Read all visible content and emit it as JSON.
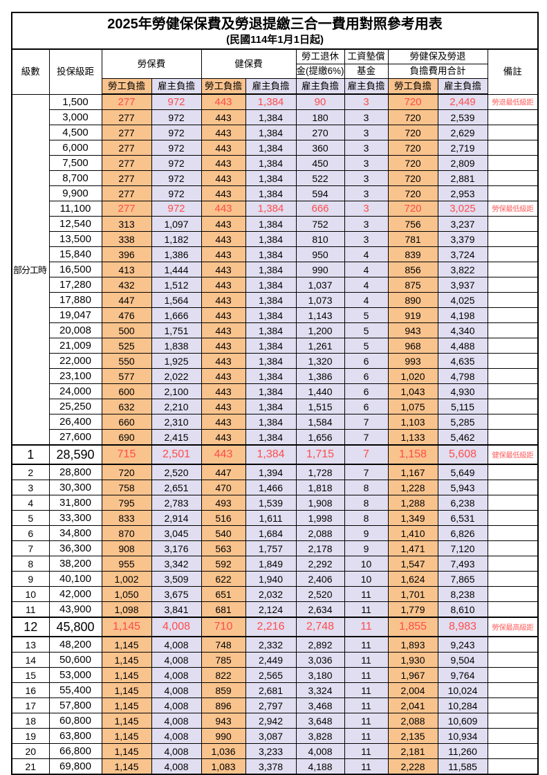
{
  "title": "2025年勞健保保費及勞退提繳三合一費用對照參考用表",
  "subtitle": "(民國114年1月1日起)",
  "columns": {
    "level": "級數",
    "salary": "投保級距",
    "labor_group": "勞保費",
    "health_group": "健保費",
    "pension_line1": "勞工退休",
    "pension_line2": "金(提繳6%)",
    "wage_fund_line1": "工資墊償",
    "wage_fund_line2": "基金",
    "total_line1": "勞健保及勞退",
    "total_line2": "負擔費用合計",
    "employee_share": "勞工負擔",
    "employer_share": "雇主負擔",
    "note": "備註"
  },
  "part_time_label": "部分工時",
  "part_time_rowspan": 23,
  "colors": {
    "employee_bg": "#F9C38D",
    "employer_bg": "#E0DEF0",
    "highlight_red": "#FF4B4B",
    "note_red": "#FF6363"
  },
  "rows": [
    {
      "level": null,
      "salary": "1,500",
      "values": [
        "277",
        "972",
        "443",
        "1,384",
        "90",
        "3",
        "720",
        "2,449"
      ],
      "note": "勞退最低級距",
      "hl": true,
      "big": false
    },
    {
      "level": null,
      "salary": "3,000",
      "values": [
        "277",
        "972",
        "443",
        "1,384",
        "180",
        "3",
        "720",
        "2,539"
      ],
      "note": "",
      "hl": false,
      "big": false
    },
    {
      "level": null,
      "salary": "4,500",
      "values": [
        "277",
        "972",
        "443",
        "1,384",
        "270",
        "3",
        "720",
        "2,629"
      ],
      "note": "",
      "hl": false,
      "big": false
    },
    {
      "level": null,
      "salary": "6,000",
      "values": [
        "277",
        "972",
        "443",
        "1,384",
        "360",
        "3",
        "720",
        "2,719"
      ],
      "note": "",
      "hl": false,
      "big": false
    },
    {
      "level": null,
      "salary": "7,500",
      "values": [
        "277",
        "972",
        "443",
        "1,384",
        "450",
        "3",
        "720",
        "2,809"
      ],
      "note": "",
      "hl": false,
      "big": false
    },
    {
      "level": null,
      "salary": "8,700",
      "values": [
        "277",
        "972",
        "443",
        "1,384",
        "522",
        "3",
        "720",
        "2,881"
      ],
      "note": "",
      "hl": false,
      "big": false
    },
    {
      "level": null,
      "salary": "9,900",
      "values": [
        "277",
        "972",
        "443",
        "1,384",
        "594",
        "3",
        "720",
        "2,953"
      ],
      "note": "",
      "hl": false,
      "big": false
    },
    {
      "level": null,
      "salary": "11,100",
      "values": [
        "277",
        "972",
        "443",
        "1,384",
        "666",
        "3",
        "720",
        "3,025"
      ],
      "note": "勞保最低級距",
      "hl": true,
      "big": false
    },
    {
      "level": null,
      "salary": "12,540",
      "values": [
        "313",
        "1,097",
        "443",
        "1,384",
        "752",
        "3",
        "756",
        "3,237"
      ],
      "note": "",
      "hl": false,
      "big": false
    },
    {
      "level": null,
      "salary": "13,500",
      "values": [
        "338",
        "1,182",
        "443",
        "1,384",
        "810",
        "3",
        "781",
        "3,379"
      ],
      "note": "",
      "hl": false,
      "big": false
    },
    {
      "level": null,
      "salary": "15,840",
      "values": [
        "396",
        "1,386",
        "443",
        "1,384",
        "950",
        "4",
        "839",
        "3,724"
      ],
      "note": "",
      "hl": false,
      "big": false
    },
    {
      "level": null,
      "salary": "16,500",
      "values": [
        "413",
        "1,444",
        "443",
        "1,384",
        "990",
        "4",
        "856",
        "3,822"
      ],
      "note": "",
      "hl": false,
      "big": false
    },
    {
      "level": null,
      "salary": "17,280",
      "values": [
        "432",
        "1,512",
        "443",
        "1,384",
        "1,037",
        "4",
        "875",
        "3,937"
      ],
      "note": "",
      "hl": false,
      "big": false
    },
    {
      "level": null,
      "salary": "17,880",
      "values": [
        "447",
        "1,564",
        "443",
        "1,384",
        "1,073",
        "4",
        "890",
        "4,025"
      ],
      "note": "",
      "hl": false,
      "big": false
    },
    {
      "level": null,
      "salary": "19,047",
      "values": [
        "476",
        "1,666",
        "443",
        "1,384",
        "1,143",
        "5",
        "919",
        "4,198"
      ],
      "note": "",
      "hl": false,
      "big": false
    },
    {
      "level": null,
      "salary": "20,008",
      "values": [
        "500",
        "1,751",
        "443",
        "1,384",
        "1,200",
        "5",
        "943",
        "4,340"
      ],
      "note": "",
      "hl": false,
      "big": false
    },
    {
      "level": null,
      "salary": "21,009",
      "values": [
        "525",
        "1,838",
        "443",
        "1,384",
        "1,261",
        "5",
        "968",
        "4,488"
      ],
      "note": "",
      "hl": false,
      "big": false
    },
    {
      "level": null,
      "salary": "22,000",
      "values": [
        "550",
        "1,925",
        "443",
        "1,384",
        "1,320",
        "6",
        "993",
        "4,635"
      ],
      "note": "",
      "hl": false,
      "big": false
    },
    {
      "level": null,
      "salary": "23,100",
      "values": [
        "577",
        "2,022",
        "443",
        "1,384",
        "1,386",
        "6",
        "1,020",
        "4,798"
      ],
      "note": "",
      "hl": false,
      "big": false
    },
    {
      "level": null,
      "salary": "24,000",
      "values": [
        "600",
        "2,100",
        "443",
        "1,384",
        "1,440",
        "6",
        "1,043",
        "4,930"
      ],
      "note": "",
      "hl": false,
      "big": false
    },
    {
      "level": null,
      "salary": "25,250",
      "values": [
        "632",
        "2,210",
        "443",
        "1,384",
        "1,515",
        "6",
        "1,075",
        "5,115"
      ],
      "note": "",
      "hl": false,
      "big": false
    },
    {
      "level": null,
      "salary": "26,400",
      "values": [
        "660",
        "2,310",
        "443",
        "1,384",
        "1,584",
        "7",
        "1,103",
        "5,285"
      ],
      "note": "",
      "hl": false,
      "big": false
    },
    {
      "level": null,
      "salary": "27,600",
      "values": [
        "690",
        "2,415",
        "443",
        "1,384",
        "1,656",
        "7",
        "1,133",
        "5,462"
      ],
      "note": "",
      "hl": false,
      "big": false
    },
    {
      "level": "1",
      "salary": "28,590",
      "values": [
        "715",
        "2,501",
        "443",
        "1,384",
        "1,715",
        "7",
        "1,158",
        "5,608"
      ],
      "note": "健保最低級距",
      "hl": true,
      "big": true
    },
    {
      "level": "2",
      "salary": "28,800",
      "values": [
        "720",
        "2,520",
        "447",
        "1,394",
        "1,728",
        "7",
        "1,167",
        "5,649"
      ],
      "note": "",
      "hl": false,
      "big": false
    },
    {
      "level": "3",
      "salary": "30,300",
      "values": [
        "758",
        "2,651",
        "470",
        "1,466",
        "1,818",
        "8",
        "1,228",
        "5,943"
      ],
      "note": "",
      "hl": false,
      "big": false
    },
    {
      "level": "4",
      "salary": "31,800",
      "values": [
        "795",
        "2,783",
        "493",
        "1,539",
        "1,908",
        "8",
        "1,288",
        "6,238"
      ],
      "note": "",
      "hl": false,
      "big": false
    },
    {
      "level": "5",
      "salary": "33,300",
      "values": [
        "833",
        "2,914",
        "516",
        "1,611",
        "1,998",
        "8",
        "1,349",
        "6,531"
      ],
      "note": "",
      "hl": false,
      "big": false
    },
    {
      "level": "6",
      "salary": "34,800",
      "values": [
        "870",
        "3,045",
        "540",
        "1,684",
        "2,088",
        "9",
        "1,410",
        "6,826"
      ],
      "note": "",
      "hl": false,
      "big": false
    },
    {
      "level": "7",
      "salary": "36,300",
      "values": [
        "908",
        "3,176",
        "563",
        "1,757",
        "2,178",
        "9",
        "1,471",
        "7,120"
      ],
      "note": "",
      "hl": false,
      "big": false
    },
    {
      "level": "8",
      "salary": "38,200",
      "values": [
        "955",
        "3,342",
        "592",
        "1,849",
        "2,292",
        "10",
        "1,547",
        "7,493"
      ],
      "note": "",
      "hl": false,
      "big": false
    },
    {
      "level": "9",
      "salary": "40,100",
      "values": [
        "1,002",
        "3,509",
        "622",
        "1,940",
        "2,406",
        "10",
        "1,624",
        "7,865"
      ],
      "note": "",
      "hl": false,
      "big": false
    },
    {
      "level": "10",
      "salary": "42,000",
      "values": [
        "1,050",
        "3,675",
        "651",
        "2,032",
        "2,520",
        "11",
        "1,701",
        "8,238"
      ],
      "note": "",
      "hl": false,
      "big": false
    },
    {
      "level": "11",
      "salary": "43,900",
      "values": [
        "1,098",
        "3,841",
        "681",
        "2,124",
        "2,634",
        "11",
        "1,779",
        "8,610"
      ],
      "note": "",
      "hl": false,
      "big": false
    },
    {
      "level": "12",
      "salary": "45,800",
      "values": [
        "1,145",
        "4,008",
        "710",
        "2,216",
        "2,748",
        "11",
        "1,855",
        "8,983"
      ],
      "note": "勞保最高級距",
      "hl": true,
      "big": true
    },
    {
      "level": "13",
      "salary": "48,200",
      "values": [
        "1,145",
        "4,008",
        "748",
        "2,332",
        "2,892",
        "11",
        "1,893",
        "9,243"
      ],
      "note": "",
      "hl": false,
      "big": false
    },
    {
      "level": "14",
      "salary": "50,600",
      "values": [
        "1,145",
        "4,008",
        "785",
        "2,449",
        "3,036",
        "11",
        "1,930",
        "9,504"
      ],
      "note": "",
      "hl": false,
      "big": false
    },
    {
      "level": "15",
      "salary": "53,000",
      "values": [
        "1,145",
        "4,008",
        "822",
        "2,565",
        "3,180",
        "11",
        "1,967",
        "9,764"
      ],
      "note": "",
      "hl": false,
      "big": false
    },
    {
      "level": "16",
      "salary": "55,400",
      "values": [
        "1,145",
        "4,008",
        "859",
        "2,681",
        "3,324",
        "11",
        "2,004",
        "10,024"
      ],
      "note": "",
      "hl": false,
      "big": false
    },
    {
      "level": "17",
      "salary": "57,800",
      "values": [
        "1,145",
        "4,008",
        "896",
        "2,797",
        "3,468",
        "11",
        "2,041",
        "10,284"
      ],
      "note": "",
      "hl": false,
      "big": false
    },
    {
      "level": "18",
      "salary": "60,800",
      "values": [
        "1,145",
        "4,008",
        "943",
        "2,942",
        "3,648",
        "11",
        "2,088",
        "10,609"
      ],
      "note": "",
      "hl": false,
      "big": false
    },
    {
      "level": "19",
      "salary": "63,800",
      "values": [
        "1,145",
        "4,008",
        "990",
        "3,087",
        "3,828",
        "11",
        "2,135",
        "10,934"
      ],
      "note": "",
      "hl": false,
      "big": false
    },
    {
      "level": "20",
      "salary": "66,800",
      "values": [
        "1,145",
        "4,008",
        "1,036",
        "3,233",
        "4,008",
        "11",
        "2,181",
        "11,260"
      ],
      "note": "",
      "hl": false,
      "big": false
    },
    {
      "level": "21",
      "salary": "69,800",
      "values": [
        "1,145",
        "4,008",
        "1,083",
        "3,378",
        "4,188",
        "11",
        "2,228",
        "11,585"
      ],
      "note": "",
      "hl": false,
      "big": false
    }
  ]
}
